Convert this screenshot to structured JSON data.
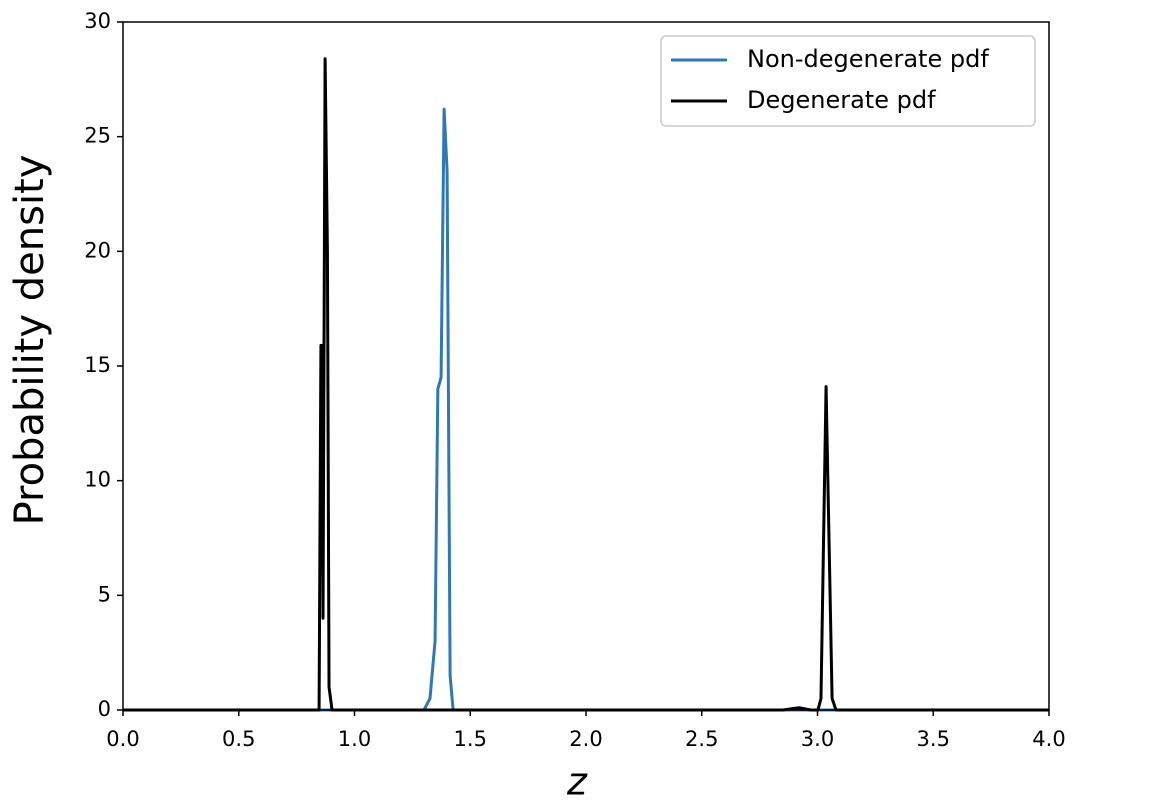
{
  "chart_data": {
    "type": "line",
    "xlabel": "z",
    "ylabel": "Probability density",
    "xlim": [
      0,
      4
    ],
    "ylim": [
      0,
      30
    ],
    "xticks": [
      {
        "value": 0,
        "label": "0.0"
      },
      0.5,
      {
        "value": 1,
        "label": "1.0"
      },
      1.5,
      {
        "value": 2,
        "label": "2.0"
      },
      2.5,
      {
        "value": 3,
        "label": "3.0"
      },
      3.5,
      {
        "value": 4,
        "label": "4.0"
      }
    ],
    "yticks": [
      0,
      5,
      10,
      15,
      20,
      25,
      30
    ],
    "legend": "upper right",
    "series": [
      {
        "name": "Non-degenerate pdf",
        "color": "#2f78b5",
        "x": [
          0,
          1.3,
          1.326,
          1.348,
          1.36,
          1.374,
          1.387,
          1.4,
          1.413,
          1.426,
          1.45,
          4.0
        ],
        "values": [
          0,
          0,
          0.5,
          3,
          14,
          14.5,
          26.2,
          23.5,
          1.5,
          0,
          0,
          0
        ]
      },
      {
        "name": "Degenerate pdf",
        "color": "#000000",
        "x": [
          0,
          0.84,
          0.847,
          0.855,
          0.86,
          0.864,
          0.873,
          0.883,
          0.89,
          0.903,
          2.85,
          2.92,
          2.97,
          3.002,
          3.015,
          3.037,
          3.063,
          3.08,
          4.0
        ],
        "values": [
          0,
          0,
          0,
          15.9,
          15.9,
          4,
          28.4,
          20,
          1,
          0,
          0,
          0.1,
          0,
          0,
          0.5,
          14.1,
          0.5,
          0,
          0
        ]
      }
    ]
  }
}
